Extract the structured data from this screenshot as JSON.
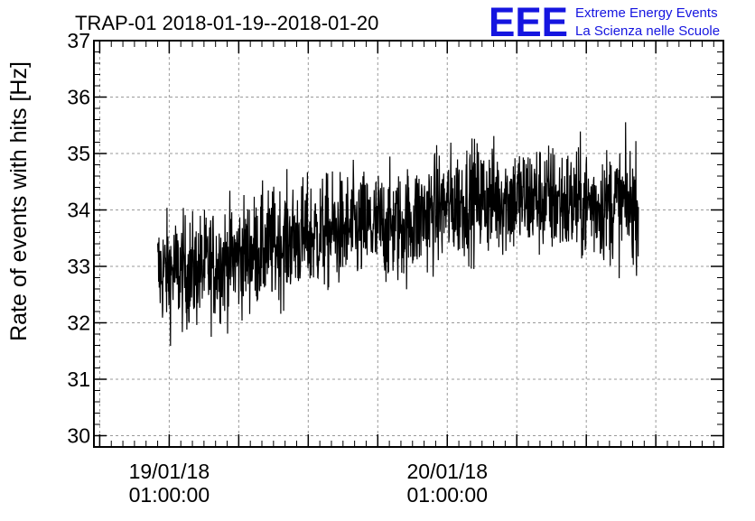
{
  "chart_data": {
    "type": "line",
    "title": "TRAP-01 2018-01-19--2018-01-20",
    "ylabel": "Rate of events with hits [Hz]",
    "xlabel": "",
    "ylim": [
      29.8,
      37.0
    ],
    "y_ticks": [
      "30",
      "31",
      "32",
      "33",
      "34",
      "35",
      "36",
      "37"
    ],
    "x_ticks": [
      {
        "date": "19/01/18",
        "time": "01:00:00"
      },
      {
        "date": "20/01/18",
        "time": "01:00:00"
      }
    ],
    "xlim": [
      "2018-01-18 18:30",
      "2018-01-21 00:50"
    ],
    "x_tick_times": [
      "2018-01-19 01:00",
      "2018-01-20 01:00"
    ],
    "grid": true,
    "legend": "none",
    "line_color": "#000000",
    "series_trend": {
      "x": [
        "2018-01-19 00:00",
        "2018-01-19 03:00",
        "2018-01-19 06:00",
        "2018-01-19 09:00",
        "2018-01-19 12:00",
        "2018-01-19 15:00",
        "2018-01-19 18:00",
        "2018-01-19 21:00",
        "2018-01-20 00:00",
        "2018-01-20 03:00",
        "2018-01-20 06:00",
        "2018-01-20 09:00",
        "2018-01-20 12:00",
        "2018-01-20 15:00",
        "2018-01-20 17:30"
      ],
      "y": [
        32.9,
        32.9,
        33.1,
        33.3,
        33.5,
        33.6,
        33.7,
        33.7,
        34.0,
        34.2,
        34.2,
        34.2,
        34.1,
        34.1,
        34.1
      ],
      "noise_amplitude": 0.9
    }
  },
  "logo": {
    "text": "EEE",
    "line1": "Extreme Energy Events",
    "line2": "La Scienza nelle Scuole",
    "color": "#1515e0"
  }
}
